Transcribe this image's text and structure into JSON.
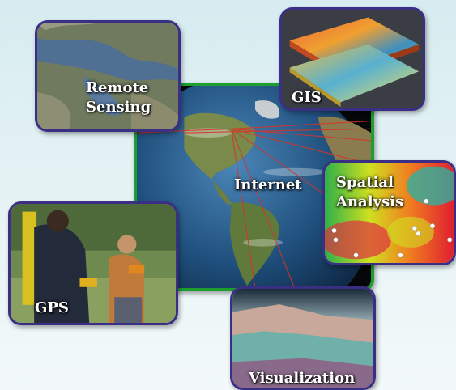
{
  "center": {
    "label": "Internet"
  },
  "panels": {
    "remote_sensing": {
      "label_line1": "Remote",
      "label_line2": "Sensing"
    },
    "gis": {
      "label": "GIS"
    },
    "spatial_analysis": {
      "label_line1": "Spatial",
      "label_line2": "Analysis"
    },
    "gps": {
      "label": "GPS"
    },
    "visualization": {
      "label": "Visualization"
    }
  },
  "colors": {
    "panel_border": "#3b2f85",
    "center_border": "#1d9e2f",
    "background": "#e4f2f4"
  }
}
